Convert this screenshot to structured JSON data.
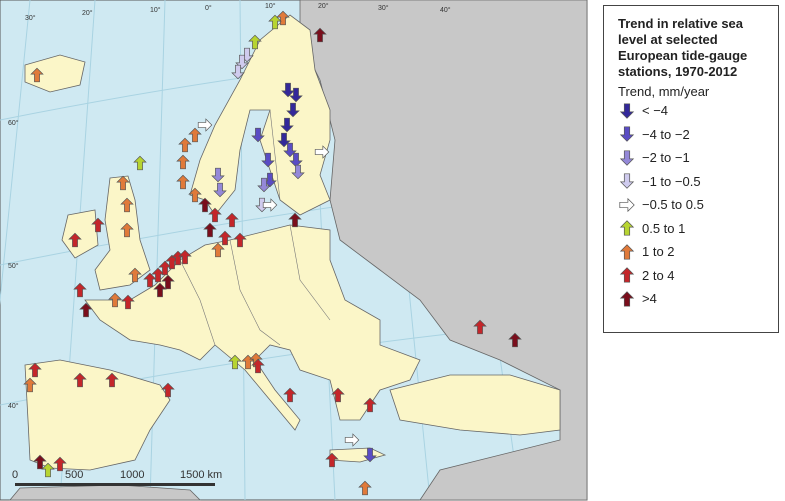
{
  "legend": {
    "title": "Trend in relative sea level at selected European tide-gauge stations, 1970-2012",
    "subtitle": "Trend, mm/year",
    "items": [
      {
        "label": "< −4",
        "color": "#33289a",
        "direction": "down"
      },
      {
        "label": "−4 to −2",
        "color": "#5a4cc4",
        "direction": "down"
      },
      {
        "label": "−2 to −1",
        "color": "#9488d8",
        "direction": "down"
      },
      {
        "label": "−1 to −0.5",
        "color": "#cfcbee",
        "direction": "down"
      },
      {
        "label": "−0.5 to 0.5",
        "color": "#ffffff",
        "direction": "right"
      },
      {
        "label": "0.5 to 1",
        "color": "#b7d431",
        "direction": "up"
      },
      {
        "label": "1 to 2",
        "color": "#e07a3a",
        "direction": "up"
      },
      {
        "label": "2 to 4",
        "color": "#c4262a",
        "direction": "up"
      },
      {
        "label": ">4",
        "color": "#7a0e1c",
        "direction": "up"
      }
    ]
  },
  "scale_bar": {
    "labels": [
      "0",
      "500",
      "1000",
      "1500 km"
    ]
  },
  "graticule": {
    "labels": [
      "30°",
      "20°",
      "10°",
      "0°",
      "10°",
      "20°",
      "30°",
      "40°",
      "60°",
      "50°",
      "40°"
    ]
  }
}
